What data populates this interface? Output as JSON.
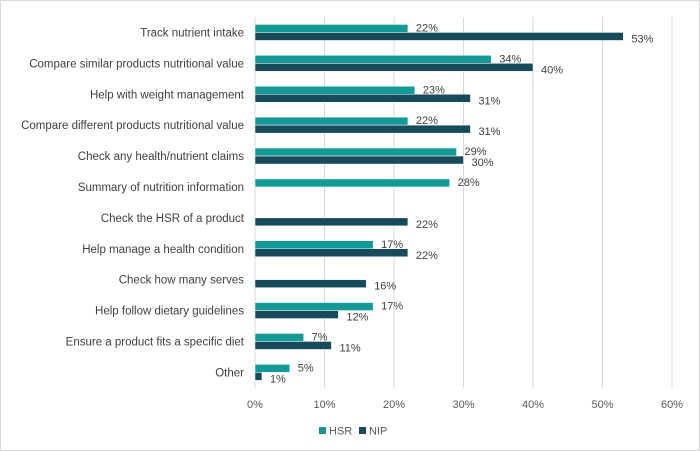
{
  "chart_data": {
    "type": "bar",
    "orientation": "horizontal",
    "categories": [
      "Track nutrient intake",
      "Compare similar products nutritional value",
      "Help with weight management",
      "Compare different products nutritional value",
      "Check any health/nutrient claims",
      "Summary of nutrition information",
      "Check the HSR of a product",
      "Help manage a health condition",
      "Check how many serves",
      "Help follow dietary guidelines",
      "Ensure a product fits a specific diet",
      "Other"
    ],
    "series": [
      {
        "name": "HSR",
        "color": "#139a98",
        "values": [
          22,
          34,
          23,
          22,
          29,
          28,
          null,
          17,
          null,
          17,
          7,
          5
        ]
      },
      {
        "name": "NIP",
        "color": "#174a5a",
        "values": [
          53,
          40,
          31,
          31,
          30,
          null,
          22,
          22,
          16,
          12,
          11,
          1
        ]
      }
    ],
    "xlim": [
      0,
      60
    ],
    "xticks": [
      "0%",
      "10%",
      "20%",
      "30%",
      "40%",
      "50%",
      "60%"
    ],
    "value_suffix": "%",
    "grid": "vertical",
    "legend": "bottom",
    "title": "",
    "xlabel": "",
    "ylabel": ""
  }
}
